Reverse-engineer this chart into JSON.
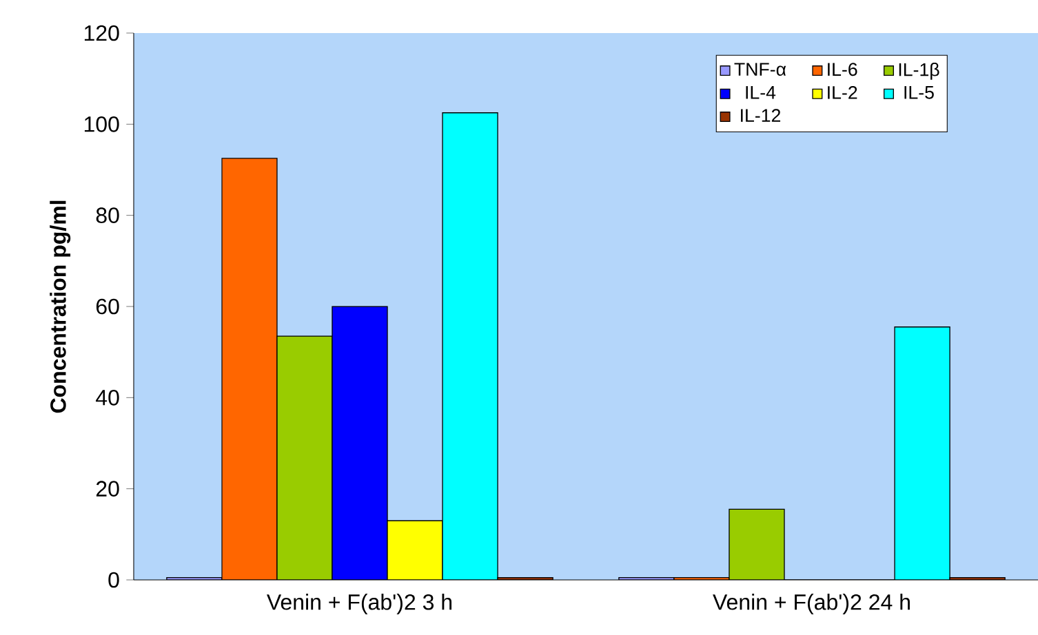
{
  "chart_data": {
    "type": "bar",
    "ylabel": "Concentration pg/ml",
    "categories": [
      "Venin + F(ab')2 3 h",
      "Venin + F(ab')2 24 h"
    ],
    "series": [
      {
        "name": "TNF-α",
        "color": "#9999ff",
        "values": [
          0.5,
          0.5
        ]
      },
      {
        "name": "IL-6",
        "color": "#ff6600",
        "values": [
          92.5,
          0.5
        ]
      },
      {
        "name": "IL-1β",
        "color": "#99cc00",
        "values": [
          53.5,
          15.5
        ]
      },
      {
        "name": "IL-4",
        "color": "#0000ff",
        "values": [
          60,
          0
        ]
      },
      {
        "name": "IL-2",
        "color": "#ffff00",
        "values": [
          13,
          0
        ]
      },
      {
        "name": "IL-5",
        "color": "#00ffff",
        "values": [
          102.5,
          55.5
        ]
      },
      {
        "name": "IL-12",
        "color": "#993300",
        "values": [
          0.5,
          0.5
        ]
      }
    ],
    "ylim": [
      0,
      120
    ],
    "yticks": [
      0,
      20,
      40,
      60,
      80,
      100,
      120
    ],
    "grid": false,
    "legend": "top right"
  }
}
